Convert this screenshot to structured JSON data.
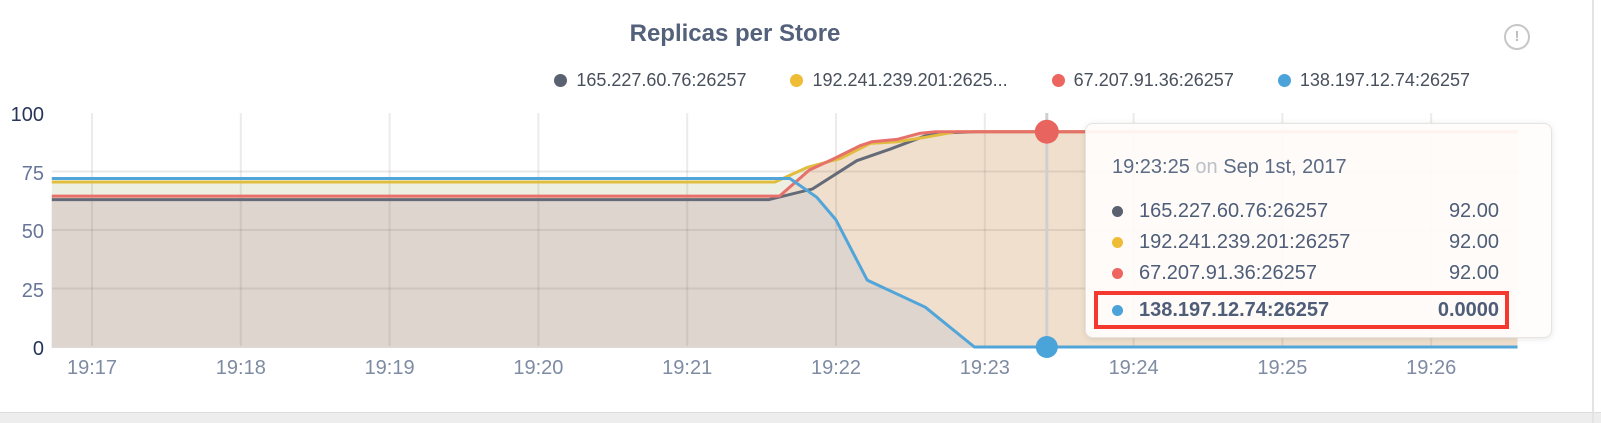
{
  "title": "Replicas per Store",
  "info_icon": {
    "glyph": "!"
  },
  "legend": {
    "items": [
      {
        "label": "165.227.60.76:26257",
        "color": "#5a6170"
      },
      {
        "label": "192.241.239.201:2625...",
        "color": "#eebd35"
      },
      {
        "label": "67.207.91.36:26257",
        "color": "#ed655f"
      },
      {
        "label": "138.197.12.74:26257",
        "color": "#4ba3da"
      }
    ]
  },
  "tooltip": {
    "time": "19:23:25",
    "on_word": "on",
    "date": "Sep 1st, 2017",
    "highlight_color": "#f5392f",
    "rows": [
      {
        "name": "165.227.60.76:26257",
        "value": "92.00",
        "color": "#5a6170",
        "highlighted": false
      },
      {
        "name": "192.241.239.201:26257",
        "value": "92.00",
        "color": "#eebd35",
        "highlighted": false
      },
      {
        "name": "67.207.91.36:26257",
        "value": "92.00",
        "color": "#ed655f",
        "highlighted": false
      },
      {
        "name": "138.197.12.74:26257",
        "value": "0.0000",
        "color": "#4ba3da",
        "highlighted": true
      }
    ]
  },
  "chart_data": {
    "type": "area",
    "title": "Replicas per Store",
    "xlabel": "",
    "ylabel": "",
    "ylim": [
      0,
      100
    ],
    "y_ticks": [
      0,
      25,
      50,
      75,
      100
    ],
    "x_ticks": [
      {
        "t": 17,
        "label": "19:17"
      },
      {
        "t": 18,
        "label": "19:18"
      },
      {
        "t": 19,
        "label": "19:19"
      },
      {
        "t": 20,
        "label": "19:20"
      },
      {
        "t": 21,
        "label": "19:21"
      },
      {
        "t": 22,
        "label": "19:22"
      },
      {
        "t": 23,
        "label": "19:23"
      },
      {
        "t": 24,
        "label": "19:24"
      },
      {
        "t": 25,
        "label": "19:25"
      },
      {
        "t": 26,
        "label": "19:26"
      }
    ],
    "x_domain": [
      16.73,
      26.58
    ],
    "grid": true,
    "legend_position": "top",
    "series": [
      {
        "name": "165.227.60.76:26257",
        "color": "#646a78",
        "fill": null,
        "points": [
          [
            16.73,
            63
          ],
          [
            21.55,
            63
          ],
          [
            21.84,
            67.5
          ],
          [
            22.14,
            79.6
          ],
          [
            22.36,
            84.5
          ],
          [
            22.6,
            90.2
          ],
          [
            22.75,
            91.6
          ],
          [
            22.95,
            92
          ],
          [
            26.58,
            92
          ]
        ]
      },
      {
        "name": "192.241.239.201:26257",
        "color": "#e0bc3f",
        "fill": "#edefe2",
        "points": [
          [
            16.73,
            70.5
          ],
          [
            21.59,
            70.5
          ],
          [
            21.81,
            76.8
          ],
          [
            22.03,
            80.6
          ],
          [
            22.23,
            87
          ],
          [
            22.41,
            87.7
          ],
          [
            22.6,
            89.6
          ],
          [
            22.81,
            92
          ],
          [
            26.58,
            92
          ]
        ]
      },
      {
        "name": "67.207.91.36:26257",
        "color": "#e8706a",
        "fill": "#f0dfcd",
        "points": [
          [
            16.73,
            64.5
          ],
          [
            21.62,
            64.5
          ],
          [
            21.82,
            75.6
          ],
          [
            21.98,
            80.3
          ],
          [
            22.16,
            86
          ],
          [
            22.24,
            87.7
          ],
          [
            22.41,
            88.7
          ],
          [
            22.56,
            91.3
          ],
          [
            22.67,
            92
          ],
          [
            26.58,
            92
          ]
        ]
      },
      {
        "name": "138.197.12.74:26257",
        "color": "#51a5d9",
        "fill": null,
        "points": [
          [
            16.73,
            72
          ],
          [
            21.69,
            72
          ],
          [
            21.87,
            64
          ],
          [
            22.0,
            54.3
          ],
          [
            22.21,
            28.6
          ],
          [
            22.28,
            26.5
          ],
          [
            22.6,
            17
          ],
          [
            22.93,
            0
          ],
          [
            26.58,
            0
          ]
        ]
      }
    ],
    "lower_envelope": {
      "fill": "#ddd5ce",
      "points": [
        [
          16.73,
          63
        ],
        [
          21.55,
          63
        ],
        [
          21.82,
          66
        ],
        [
          21.87,
          64
        ],
        [
          22.0,
          54.3
        ],
        [
          22.21,
          28.6
        ],
        [
          22.28,
          26.5
        ],
        [
          22.6,
          17
        ],
        [
          22.93,
          0
        ],
        [
          26.58,
          0
        ]
      ]
    },
    "hover": {
      "t": 23.4167,
      "time_label": "19:23:25",
      "line_color": "#cfcfcf",
      "points": [
        {
          "series": "67.207.91.36:26257",
          "v": 92,
          "color": "#e8645f",
          "r": 12
        },
        {
          "series": "138.197.12.74:26257",
          "v": 0,
          "color": "#4aa3d9",
          "r": 11
        }
      ]
    }
  }
}
